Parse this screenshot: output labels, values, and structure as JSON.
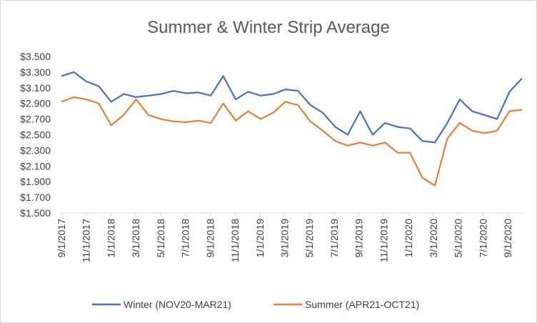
{
  "chart_data": {
    "type": "line",
    "title": "Summer  & Winter Strip Average",
    "xlabel": "",
    "ylabel": "",
    "grid": false,
    "legend_position": "bottom",
    "ylim": [
      1.5,
      3.5
    ],
    "y_ticks": [
      1.5,
      1.7,
      1.9,
      2.1,
      2.3,
      2.5,
      2.7,
      2.9,
      3.1,
      3.3,
      3.5
    ],
    "y_tick_labels": [
      "$1.500",
      "$1.700",
      "$1.900",
      "$2.100",
      "$2.300",
      "$2.500",
      "$2.700",
      "$2.900",
      "$3.100",
      "$3.300",
      "$3.500"
    ],
    "x_tick_labels": [
      "9/1/2017",
      "11/1/2017",
      "1/1/2018",
      "3/1/2018",
      "5/1/2018",
      "7/1/2018",
      "9/1/2018",
      "11/1/2018",
      "1/1/2019",
      "3/1/2019",
      "5/1/2019",
      "7/1/2019",
      "9/1/2019",
      "11/1/2019",
      "1/1/2020",
      "3/1/2020",
      "5/1/2020",
      "7/1/2020",
      "9/1/2020"
    ],
    "x": [
      "2017-09",
      "2017-10",
      "2017-11",
      "2017-12",
      "2018-01",
      "2018-02",
      "2018-03",
      "2018-04",
      "2018-05",
      "2018-06",
      "2018-07",
      "2018-08",
      "2018-09",
      "2018-10",
      "2018-11",
      "2018-12",
      "2019-01",
      "2019-02",
      "2019-03",
      "2019-04",
      "2019-05",
      "2019-06",
      "2019-07",
      "2019-08",
      "2019-09",
      "2019-10",
      "2019-11",
      "2019-12",
      "2020-01",
      "2020-02",
      "2020-03",
      "2020-04",
      "2020-05",
      "2020-06",
      "2020-07",
      "2020-08",
      "2020-09",
      "2020-10"
    ],
    "series": [
      {
        "name": "Winter (NOV20-MAR21)",
        "color": "#4472C4",
        "values": [
          3.25,
          3.3,
          3.18,
          3.12,
          2.92,
          3.02,
          2.98,
          3.0,
          3.02,
          3.06,
          3.03,
          3.04,
          3.0,
          3.25,
          2.95,
          3.05,
          3.0,
          3.02,
          3.08,
          3.06,
          2.88,
          2.78,
          2.6,
          2.5,
          2.8,
          2.5,
          2.65,
          2.6,
          2.58,
          2.42,
          2.4,
          2.65,
          2.95,
          2.8,
          2.75,
          2.7,
          3.05,
          3.22
        ]
      },
      {
        "name": "Summer  (APR21-OCT21)",
        "color": "#ED7D31",
        "values": [
          2.92,
          2.98,
          2.95,
          2.9,
          2.62,
          2.75,
          2.95,
          2.75,
          2.7,
          2.67,
          2.66,
          2.68,
          2.65,
          2.9,
          2.68,
          2.8,
          2.7,
          2.78,
          2.92,
          2.88,
          2.67,
          2.55,
          2.42,
          2.36,
          2.4,
          2.36,
          2.4,
          2.27,
          2.27,
          1.95,
          1.85,
          2.45,
          2.65,
          2.55,
          2.52,
          2.55,
          2.8,
          2.82
        ]
      }
    ]
  }
}
